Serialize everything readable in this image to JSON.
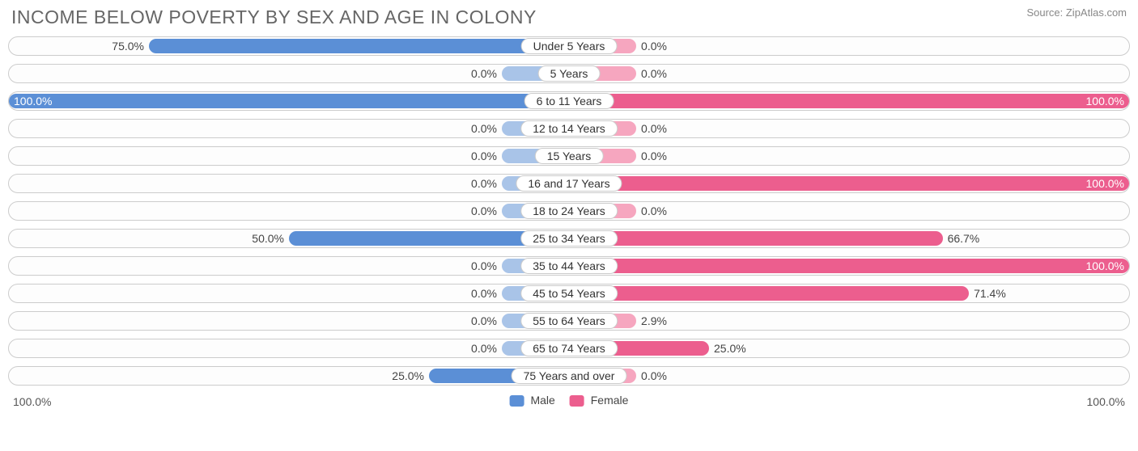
{
  "title": "INCOME BELOW POVERTY BY SEX AND AGE IN COLONY",
  "source": "Source: ZipAtlas.com",
  "axis_left": "100.0%",
  "axis_right": "100.0%",
  "legend": {
    "male": "Male",
    "female": "Female"
  },
  "colors": {
    "male_strong": "#5b8fd6",
    "male_pale": "#a9c4e8",
    "female_strong": "#ec5e8e",
    "female_pale": "#f6a6bf",
    "row_border": "#cccccc",
    "text": "#444444",
    "title_text": "#666666"
  },
  "pale_width_pct": 12.0,
  "rows": [
    {
      "label": "Under 5 Years",
      "male": 75.0,
      "female": 0.0,
      "male_txt": "75.0%",
      "female_txt": "0.0%"
    },
    {
      "label": "5 Years",
      "male": 0.0,
      "female": 0.0,
      "male_txt": "0.0%",
      "female_txt": "0.0%"
    },
    {
      "label": "6 to 11 Years",
      "male": 100.0,
      "female": 100.0,
      "male_txt": "100.0%",
      "female_txt": "100.0%"
    },
    {
      "label": "12 to 14 Years",
      "male": 0.0,
      "female": 0.0,
      "male_txt": "0.0%",
      "female_txt": "0.0%"
    },
    {
      "label": "15 Years",
      "male": 0.0,
      "female": 0.0,
      "male_txt": "0.0%",
      "female_txt": "0.0%"
    },
    {
      "label": "16 and 17 Years",
      "male": 0.0,
      "female": 100.0,
      "male_txt": "0.0%",
      "female_txt": "100.0%"
    },
    {
      "label": "18 to 24 Years",
      "male": 0.0,
      "female": 0.0,
      "male_txt": "0.0%",
      "female_txt": "0.0%"
    },
    {
      "label": "25 to 34 Years",
      "male": 50.0,
      "female": 66.7,
      "male_txt": "50.0%",
      "female_txt": "66.7%"
    },
    {
      "label": "35 to 44 Years",
      "male": 0.0,
      "female": 100.0,
      "male_txt": "0.0%",
      "female_txt": "100.0%"
    },
    {
      "label": "45 to 54 Years",
      "male": 0.0,
      "female": 71.4,
      "male_txt": "0.0%",
      "female_txt": "71.4%"
    },
    {
      "label": "55 to 64 Years",
      "male": 0.0,
      "female": 2.9,
      "male_txt": "0.0%",
      "female_txt": "2.9%"
    },
    {
      "label": "65 to 74 Years",
      "male": 0.0,
      "female": 25.0,
      "male_txt": "0.0%",
      "female_txt": "25.0%"
    },
    {
      "label": "75 Years and over",
      "male": 25.0,
      "female": 0.0,
      "male_txt": "25.0%",
      "female_txt": "0.0%"
    }
  ]
}
